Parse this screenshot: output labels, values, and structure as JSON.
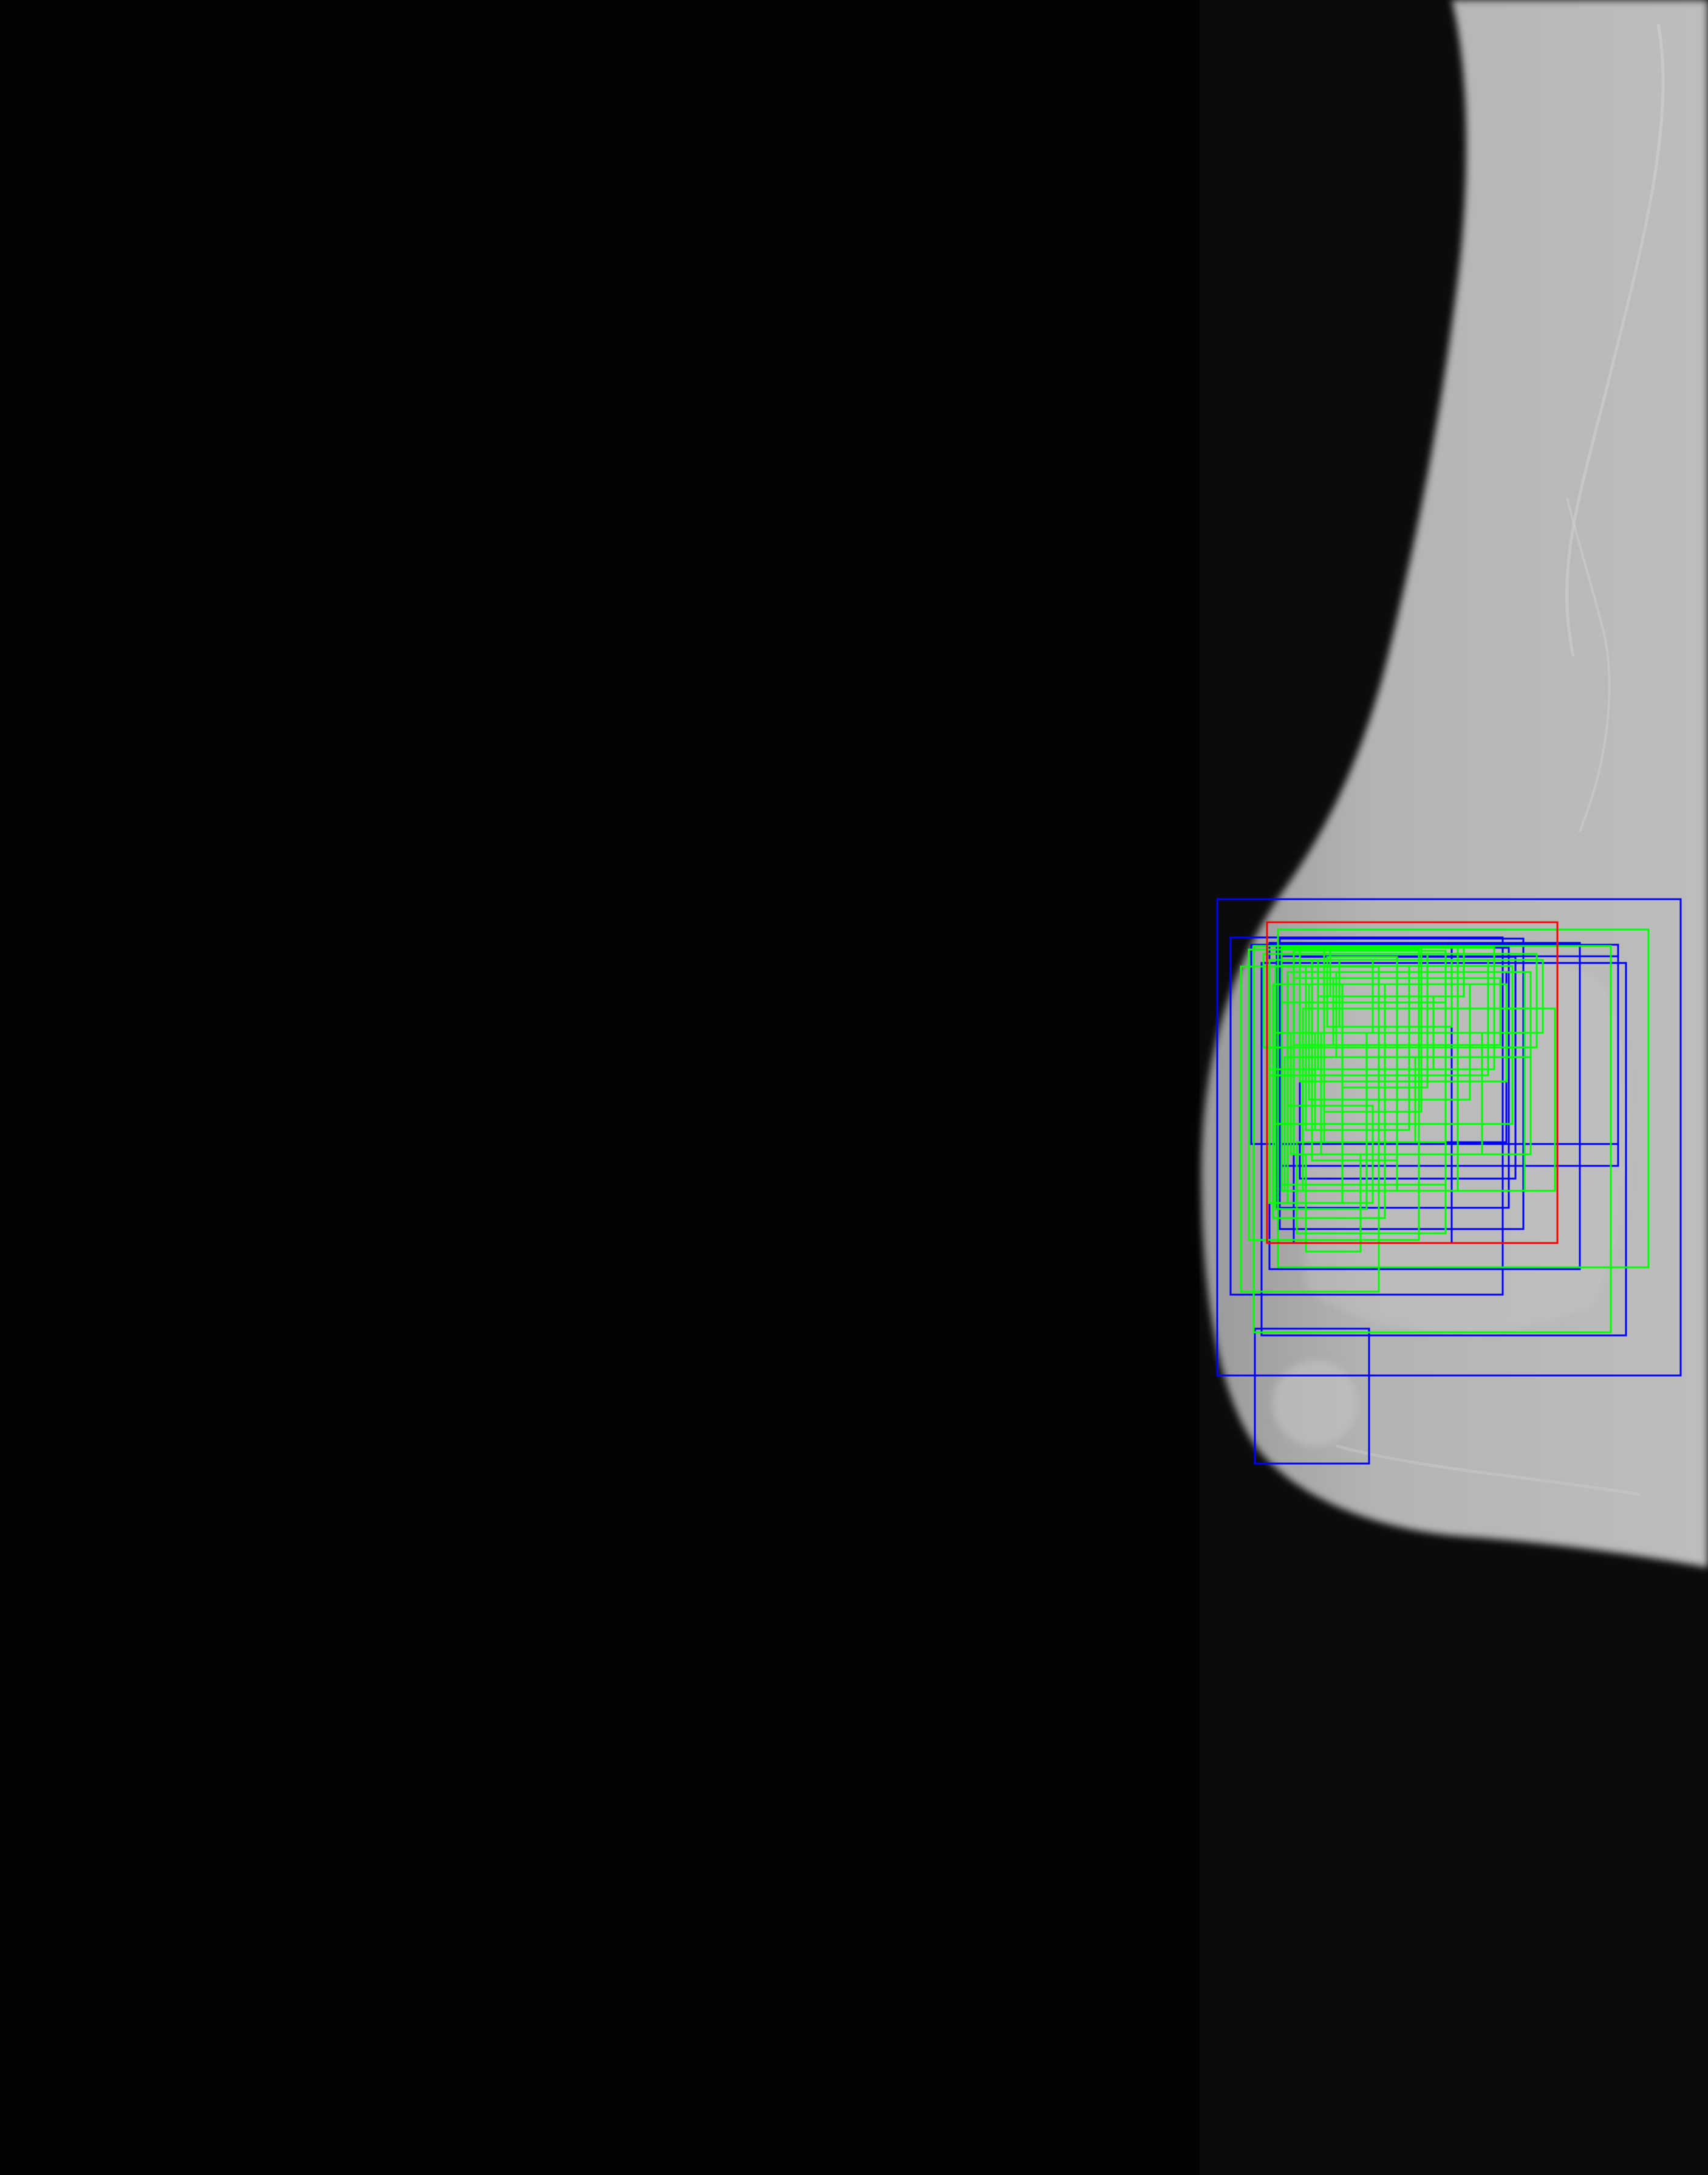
{
  "image": {
    "description_kind": "mammogram",
    "background_color": "#030303",
    "tissue_color": "#b8b8b8"
  },
  "annotations": {
    "colors": {
      "ground_truth": "#ff0000",
      "prediction_group_a": "#0000ff",
      "prediction_group_b": "#00ff00"
    },
    "box_counts": {
      "red": 1,
      "blue": 12,
      "green": 40
    }
  }
}
